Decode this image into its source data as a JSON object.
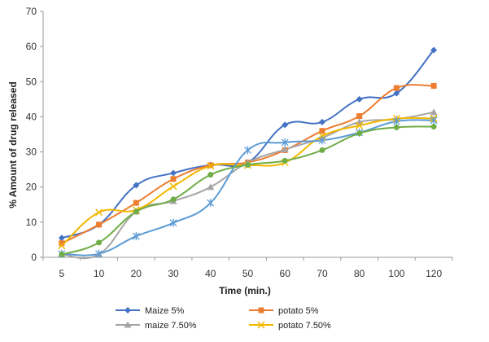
{
  "chart_data": {
    "type": "line",
    "title": "",
    "xlabel": "Time (min.)",
    "ylabel": "% Amount of drug released",
    "categories": [
      "5",
      "10",
      "20",
      "30",
      "40",
      "50",
      "60",
      "70",
      "80",
      "100",
      "120"
    ],
    "ylim": [
      0,
      70
    ],
    "yticks": [
      0,
      10,
      20,
      30,
      40,
      50,
      60,
      70
    ],
    "grid": false,
    "legend_position": "bottom",
    "series": [
      {
        "name": "Maize 5%",
        "color": "#4472C4",
        "marker": "diamond",
        "values": [
          5.5,
          9.3,
          20.5,
          24.0,
          26.3,
          27.0,
          37.7,
          38.5,
          45.0,
          46.7,
          59.0
        ]
      },
      {
        "name": "potato 5%",
        "color": "#ED7D31",
        "marker": "square",
        "values": [
          4.0,
          9.3,
          15.5,
          22.3,
          26.2,
          27.0,
          30.5,
          36.0,
          40.2,
          48.2,
          48.8
        ]
      },
      {
        "name": "maize 7.50%",
        "color": "#A5A5A5",
        "marker": "triangle",
        "values": [
          0.8,
          0.8,
          13.0,
          16.0,
          20.0,
          27.0,
          30.7,
          34.0,
          38.5,
          39.3,
          41.3
        ]
      },
      {
        "name": "potato 7.50%",
        "color": "#F2B800",
        "marker": "x",
        "values": [
          3.3,
          12.8,
          13.5,
          20.2,
          26.0,
          26.2,
          27.0,
          34.5,
          37.5,
          39.5,
          39.5
        ]
      },
      {
        "name": "",
        "color": "#5B9BD5",
        "marker": "star",
        "values": [
          1.0,
          1.0,
          6.0,
          9.8,
          15.5,
          30.5,
          32.7,
          33.3,
          35.5,
          38.7,
          39.0
        ]
      },
      {
        "name": "",
        "color": "#70AD47",
        "marker": "circle",
        "values": [
          0.8,
          4.2,
          13.0,
          16.5,
          23.5,
          26.3,
          27.5,
          30.5,
          35.3,
          37.0,
          37.2
        ]
      }
    ]
  }
}
